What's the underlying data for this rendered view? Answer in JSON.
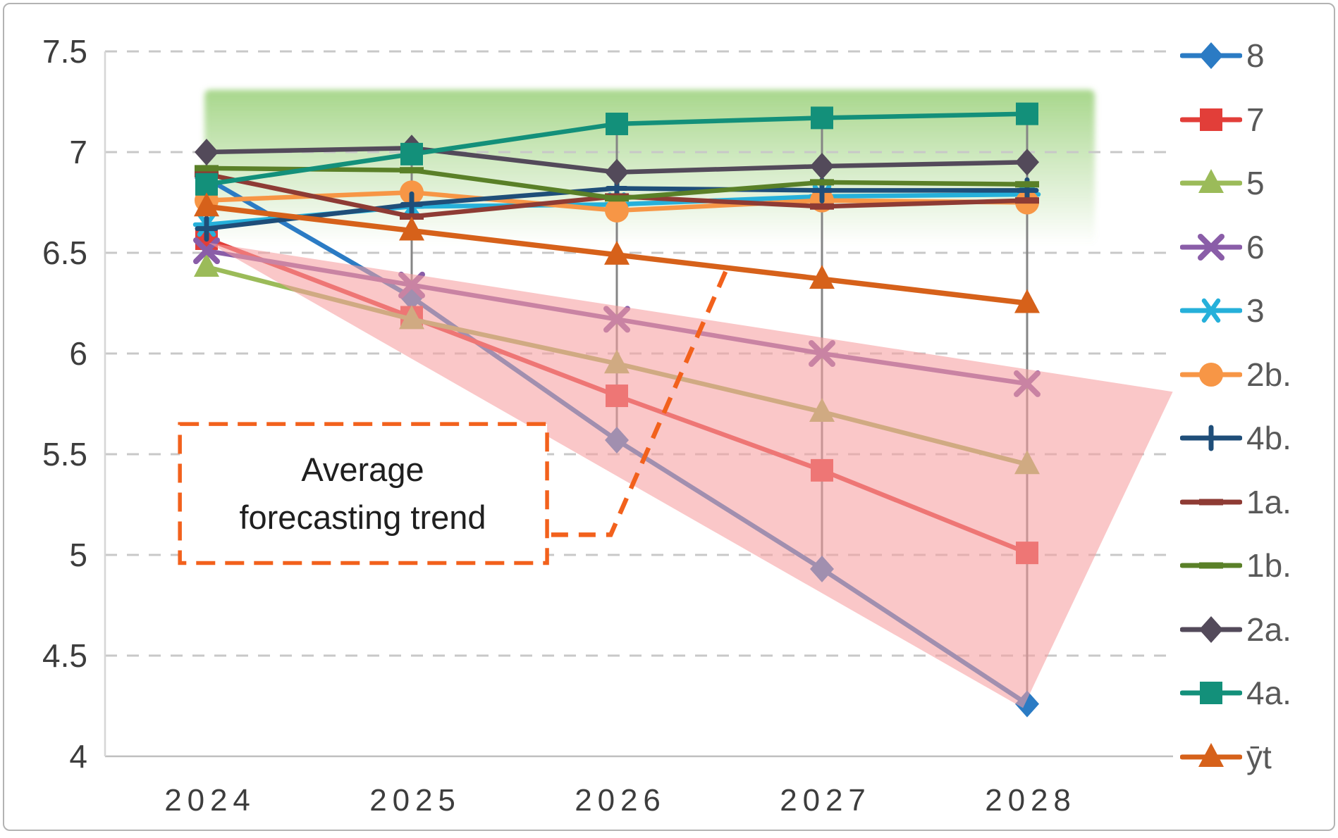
{
  "figure_title": "",
  "annotation": {
    "label_line1": "Average",
    "label_line2": "forecasting trend"
  },
  "chart_data": {
    "type": "line",
    "title": "",
    "xlabel": "",
    "ylabel": "",
    "x_categories": [
      "2024",
      "2025",
      "2026",
      "2027",
      "2028"
    ],
    "ylim": [
      4,
      7.5
    ],
    "ytick_labels": [
      "7.5",
      "7",
      "6.5",
      "6",
      "5.5",
      "5",
      "4.5",
      "4"
    ],
    "grid": "dashed-horizontal",
    "legend_position": "right",
    "series": [
      {
        "name": "8",
        "color": "#2b7bc4",
        "marker": "diamond",
        "values": [
          6.87,
          6.28,
          5.57,
          4.93,
          4.26
        ]
      },
      {
        "name": "7",
        "color": "#e23e39",
        "marker": "square",
        "values": [
          6.57,
          6.18,
          5.79,
          5.42,
          5.01
        ]
      },
      {
        "name": "5",
        "color": "#9bbb59",
        "marker": "triangle",
        "values": [
          6.43,
          6.17,
          5.95,
          5.71,
          5.45
        ]
      },
      {
        "name": "6",
        "color": "#8a5da8",
        "marker": "x",
        "values": [
          6.51,
          6.34,
          6.17,
          6.0,
          5.85
        ]
      },
      {
        "name": "3",
        "color": "#26b0da",
        "marker": "star",
        "values": [
          6.64,
          6.73,
          6.74,
          6.78,
          6.79
        ]
      },
      {
        "name": "2b.",
        "color": "#f79646",
        "marker": "circle",
        "values": [
          6.76,
          6.8,
          6.71,
          6.76,
          6.75
        ]
      },
      {
        "name": "4b.",
        "color": "#1f4e79",
        "marker": "plus",
        "values": [
          6.62,
          6.74,
          6.82,
          6.81,
          6.81
        ]
      },
      {
        "name": "1a.",
        "color": "#8e3b34",
        "marker": "dash",
        "values": [
          6.89,
          6.68,
          6.78,
          6.73,
          6.76
        ]
      },
      {
        "name": "1b.",
        "color": "#5a8028",
        "marker": "dash",
        "values": [
          6.92,
          6.91,
          6.77,
          6.85,
          6.84
        ]
      },
      {
        "name": "2a.",
        "color": "#534a5a",
        "marker": "diamond",
        "values": [
          7.0,
          7.02,
          6.9,
          6.93,
          6.95
        ]
      },
      {
        "name": "4a.",
        "color": "#13907a",
        "marker": "square",
        "values": [
          6.84,
          6.99,
          7.14,
          7.17,
          7.19
        ]
      },
      {
        "name": "ȳt",
        "color": "#d6611a",
        "marker": "triangle",
        "values": [
          6.73,
          6.61,
          6.49,
          6.37,
          6.25
        ]
      }
    ],
    "annotations": {
      "label_box": {
        "text": "Average forecasting trend",
        "x_range_years": [
          2023.87,
          2025.66
        ],
        "y_range_values": [
          4.96,
          5.65
        ]
      },
      "leader_line_points_year_value": [
        [
          2025.68,
          5.1
        ],
        [
          2025.97,
          5.1
        ],
        [
          2026.54,
          6.43
        ]
      ],
      "green_band": {
        "x_range_years": [
          2023.99,
          2028.33
        ],
        "y_range_values": [
          6.54,
          7.31
        ]
      },
      "pink_wedge_vertices_year_value": [
        [
          2024.01,
          6.55
        ],
        [
          2028.71,
          5.81
        ],
        [
          2027.98,
          4.24
        ]
      ]
    }
  },
  "style_colors": {
    "green_band": "#8fcb6b",
    "pink_wedge": "#f79ea1",
    "callout_orange": "#f2611c",
    "gridline": "#c8c8c8",
    "axis_line": "#bfbfbf",
    "highlow_line": "#858585",
    "axis_text": "#3d3d3d",
    "legend_text": "#595959"
  }
}
